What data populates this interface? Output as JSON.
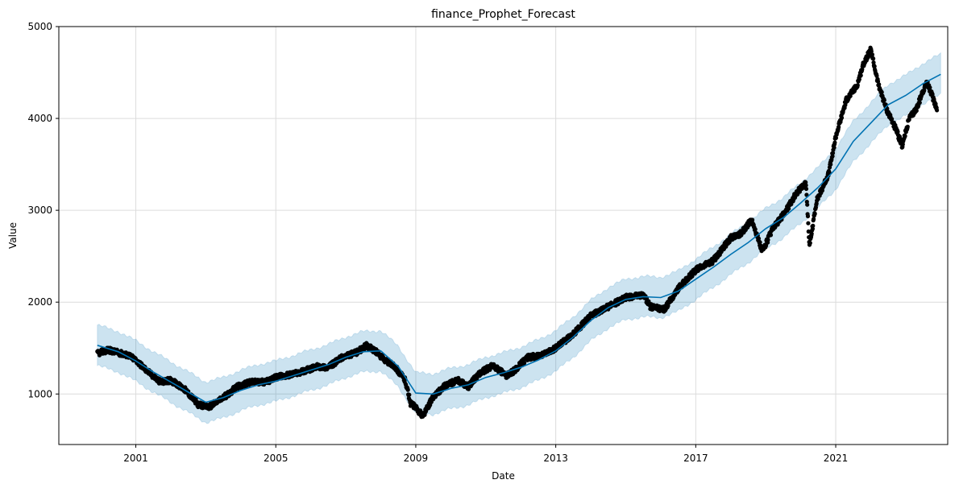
{
  "chart_data": {
    "type": "line",
    "title": "finance_Prophet_Forecast",
    "xlabel": "Date",
    "ylabel": "Value",
    "xlim": [
      1998.8,
      2024.2
    ],
    "ylim": [
      450,
      5000
    ],
    "x_ticks": [
      2001,
      2005,
      2009,
      2013,
      2017,
      2021
    ],
    "x_tick_labels": [
      "2001",
      "2005",
      "2009",
      "2013",
      "2017",
      "2021"
    ],
    "y_ticks": [
      1000,
      2000,
      3000,
      4000,
      5000
    ],
    "y_tick_labels": [
      "1000",
      "2000",
      "3000",
      "4000",
      "5000"
    ],
    "grid": true,
    "colors": {
      "observed": "#000000",
      "forecast": "#0072B2",
      "interval": "#0072B2"
    },
    "series": [
      {
        "kind": "scatter",
        "x": [
          1999.9,
          2000.2,
          2000.5,
          2000.8,
          2001.0,
          2001.3,
          2001.7,
          2002.0,
          2002.4,
          2002.8,
          2003.1,
          2003.5,
          2003.9,
          2004.3,
          2004.7,
          2005.0,
          2005.4,
          2005.8,
          2006.2,
          2006.5,
          2006.9,
          2007.3,
          2007.6,
          2007.8,
          2008.1,
          2008.4,
          2008.7,
          2008.85,
          2009.0,
          2009.2,
          2009.5,
          2009.8,
          2010.2,
          2010.5,
          2010.8,
          2011.2,
          2011.6,
          2011.8,
          2012.2,
          2012.6,
          2013.0,
          2013.5,
          2014.0,
          2014.5,
          2015.0,
          2015.5,
          2015.7,
          2016.1,
          2016.5,
          2017.0,
          2017.5,
          2018.0,
          2018.3,
          2018.6,
          2018.9,
          2019.2,
          2019.5,
          2019.9,
          2020.15,
          2020.25,
          2020.45,
          2020.8,
          2021.0,
          2021.3,
          2021.6,
          2021.8,
          2022.0,
          2022.2,
          2022.45,
          2022.7,
          2022.9,
          2023.1,
          2023.3,
          2023.6,
          2023.9
        ],
        "y": [
          1440,
          1480,
          1450,
          1420,
          1370,
          1260,
          1130,
          1150,
          1050,
          880,
          860,
          960,
          1080,
          1130,
          1130,
          1180,
          1210,
          1250,
          1300,
          1290,
          1400,
          1450,
          1530,
          1480,
          1380,
          1300,
          1150,
          900,
          850,
          760,
          970,
          1080,
          1150,
          1080,
          1220,
          1310,
          1200,
          1250,
          1400,
          1420,
          1500,
          1650,
          1850,
          1950,
          2050,
          2080,
          1950,
          1920,
          2150,
          2350,
          2450,
          2700,
          2750,
          2900,
          2550,
          2800,
          2950,
          3200,
          3300,
          2600,
          3100,
          3400,
          3800,
          4200,
          4350,
          4600,
          4750,
          4400,
          4100,
          3900,
          3700,
          4000,
          4100,
          4400,
          4100
        ]
      },
      {
        "kind": "line",
        "name": "",
        "x": [
          1999.9,
          2000.5,
          2001.0,
          2001.5,
          2002.0,
          2002.5,
          2003.0,
          2003.5,
          2004.0,
          2004.5,
          2005.0,
          2005.5,
          2006.0,
          2006.5,
          2007.0,
          2007.5,
          2008.0,
          2008.5,
          2009.0,
          2009.5,
          2010.0,
          2010.5,
          2011.0,
          2011.5,
          2012.0,
          2012.5,
          2013.0,
          2013.5,
          2014.0,
          2014.5,
          2015.0,
          2015.5,
          2016.0,
          2016.5,
          2017.0,
          2017.5,
          2018.0,
          2018.5,
          2019.0,
          2019.5,
          2020.0,
          2020.5,
          2021.0,
          2021.5,
          2022.0,
          2022.5,
          2023.0,
          2023.5,
          2024.0
        ],
        "y": [
          1530,
          1460,
          1360,
          1240,
          1130,
          1020,
          910,
          960,
          1040,
          1100,
          1140,
          1200,
          1260,
          1320,
          1400,
          1460,
          1470,
          1300,
          1010,
          1000,
          1060,
          1100,
          1180,
          1230,
          1290,
          1370,
          1470,
          1620,
          1800,
          1940,
          2030,
          2060,
          2050,
          2120,
          2250,
          2380,
          2520,
          2650,
          2800,
          2920,
          3080,
          3250,
          3450,
          3750,
          3950,
          4150,
          4250,
          4380,
          4480
        ]
      }
    ],
    "interval_halfwidth": 220
  }
}
